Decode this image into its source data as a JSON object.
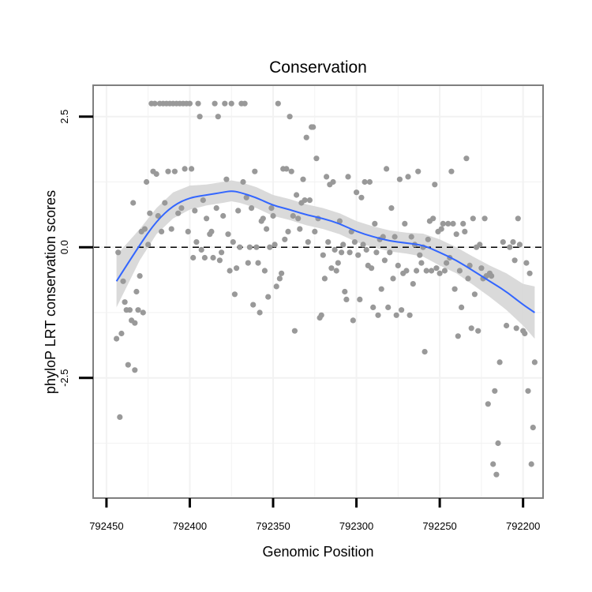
{
  "chart_data": {
    "type": "scatter",
    "title": "Conservation",
    "xlabel": "Genomic Position",
    "ylabel": "phyloP LRT conservation scores",
    "x_reversed": true,
    "xlim": [
      792458,
      792188
    ],
    "ylim": [
      -4.8,
      3.1
    ],
    "x_ticks": [
      792450,
      792400,
      792350,
      792300,
      792250,
      792200
    ],
    "x_tick_labels": [
      "792450",
      "792400",
      "792350",
      "792300",
      "792250",
      "792200"
    ],
    "y_ticks": [
      2.5,
      0.0,
      -2.5
    ],
    "y_tick_labels": [
      "2.5",
      "0.0",
      "-2.5"
    ],
    "reference_line": {
      "y": 0,
      "style": "dashed"
    },
    "grid": true,
    "colors": {
      "points": "#999999",
      "smooth_line": "#3366ff",
      "confidence_band": "#d6d6d6",
      "panel_border": "#7f7f7f",
      "grid": "#f2f2f2"
    },
    "points": [
      [
        792444,
        -1.75
      ],
      [
        792443,
        -0.1
      ],
      [
        792442,
        -3.25
      ],
      [
        792441,
        -1.65
      ],
      [
        792440,
        -0.65
      ],
      [
        792439,
        -1.05
      ],
      [
        792438,
        -1.2
      ],
      [
        792437,
        -2.25
      ],
      [
        792436,
        -1.2
      ],
      [
        792435,
        -1.4
      ],
      [
        792434,
        0.85
      ],
      [
        792433,
        -1.45
      ],
      [
        792433,
        -2.35
      ],
      [
        792432,
        -0.85
      ],
      [
        792431,
        -1.2
      ],
      [
        792430,
        -0.55
      ],
      [
        792429,
        0.3
      ],
      [
        792428,
        -1.25
      ],
      [
        792427,
        0.35
      ],
      [
        792426,
        1.25
      ],
      [
        792425,
        0.05
      ],
      [
        792424,
        0.65
      ],
      [
        792423,
        2.75
      ],
      [
        792422,
        1.45
      ],
      [
        792421,
        2.75
      ],
      [
        792420,
        1.4
      ],
      [
        792419,
        0.6
      ],
      [
        792418,
        2.75
      ],
      [
        792417,
        0.3
      ],
      [
        792416,
        2.75
      ],
      [
        792415,
        0.85
      ],
      [
        792414,
        2.75
      ],
      [
        792413,
        1.45
      ],
      [
        792412,
        2.75
      ],
      [
        792411,
        0.35
      ],
      [
        792410,
        2.75
      ],
      [
        792409,
        1.45
      ],
      [
        792408,
        2.75
      ],
      [
        792407,
        0.65
      ],
      [
        792406,
        2.75
      ],
      [
        792405,
        0.75
      ],
      [
        792404,
        2.75
      ],
      [
        792403,
        1.5
      ],
      [
        792402,
        2.75
      ],
      [
        792401,
        0.3
      ],
      [
        792400,
        2.75
      ],
      [
        792399,
        1.5
      ],
      [
        792398,
        -0.2
      ],
      [
        792397,
        0.7
      ],
      [
        792396,
        0.1
      ],
      [
        792395,
        2.75
      ],
      [
        792394,
        2.5
      ],
      [
        792393,
        -0.05
      ],
      [
        792392,
        0.9
      ],
      [
        792391,
        -0.2
      ],
      [
        792390,
        0.55
      ],
      [
        792388,
        0.25
      ],
      [
        792387,
        0.3
      ],
      [
        792386,
        -0.2
      ],
      [
        792385,
        2.75
      ],
      [
        792384,
        0.75
      ],
      [
        792383,
        2.5
      ],
      [
        792382,
        -0.25
      ],
      [
        792381,
        -0.1
      ],
      [
        792380,
        0.6
      ],
      [
        792379,
        2.75
      ],
      [
        792378,
        1.3
      ],
      [
        792377,
        0.25
      ],
      [
        792376,
        -0.45
      ],
      [
        792375,
        2.75
      ],
      [
        792374,
        0.1
      ],
      [
        792373,
        -0.9
      ],
      [
        792372,
        -0.4
      ],
      [
        792371,
        0.7
      ],
      [
        792370,
        0.0
      ],
      [
        792369,
        2.75
      ],
      [
        792368,
        1.25
      ],
      [
        792367,
        2.75
      ],
      [
        792366,
        0.95
      ],
      [
        792365,
        -0.3
      ],
      [
        792364,
        0.0
      ],
      [
        792363,
        0.75
      ],
      [
        792362,
        -1.1
      ],
      [
        792361,
        1.45
      ],
      [
        792360,
        0.0
      ],
      [
        792359,
        -0.3
      ],
      [
        792358,
        -1.25
      ],
      [
        792357,
        0.5
      ],
      [
        792356,
        0.55
      ],
      [
        792355,
        -0.45
      ],
      [
        792354,
        0.35
      ],
      [
        792353,
        -0.95
      ],
      [
        792352,
        0.0
      ],
      [
        792351,
        0.75
      ],
      [
        792350,
        0.6
      ],
      [
        792349,
        0.05
      ],
      [
        792348,
        -0.75
      ],
      [
        792347,
        2.75
      ],
      [
        792346,
        -0.6
      ],
      [
        792345,
        -0.5
      ],
      [
        792344,
        1.5
      ],
      [
        792343,
        0.15
      ],
      [
        792342,
        1.5
      ],
      [
        792341,
        0.3
      ],
      [
        792340,
        2.5
      ],
      [
        792339,
        1.45
      ],
      [
        792338,
        0.6
      ],
      [
        792337,
        -1.6
      ],
      [
        792336,
        1.0
      ],
      [
        792335,
        0.55
      ],
      [
        792334,
        0.35
      ],
      [
        792333,
        0.85
      ],
      [
        792332,
        1.3
      ],
      [
        792331,
        0.9
      ],
      [
        792330,
        2.1
      ],
      [
        792329,
        0.1
      ],
      [
        792328,
        0.9
      ],
      [
        792327,
        2.3
      ],
      [
        792326,
        2.3
      ],
      [
        792325,
        0.3
      ],
      [
        792324,
        1.7
      ],
      [
        792323,
        0.55
      ],
      [
        792322,
        -1.35
      ],
      [
        792321,
        -1.3
      ],
      [
        792320,
        -0.15
      ],
      [
        792319,
        -0.6
      ],
      [
        792318,
        1.35
      ],
      [
        792317,
        0.1
      ],
      [
        792316,
        1.2
      ],
      [
        792315,
        -0.4
      ],
      [
        792314,
        1.25
      ],
      [
        792313,
        -0.05
      ],
      [
        792312,
        -0.45
      ],
      [
        792311,
        -0.3
      ],
      [
        792310,
        0.5
      ],
      [
        792309,
        -0.1
      ],
      [
        792308,
        0.05
      ],
      [
        792307,
        -0.85
      ],
      [
        792306,
        -1.0
      ],
      [
        792305,
        1.35
      ],
      [
        792304,
        -0.1
      ],
      [
        792303,
        0.3
      ],
      [
        792302,
        -1.4
      ],
      [
        792301,
        0.1
      ],
      [
        792300,
        1.05
      ],
      [
        792299,
        -0.15
      ],
      [
        792298,
        -1.0
      ],
      [
        792297,
        0.95
      ],
      [
        792296,
        0.05
      ],
      [
        792295,
        1.25
      ],
      [
        792294,
        -0.05
      ],
      [
        792293,
        -0.35
      ],
      [
        792292,
        1.25
      ],
      [
        792291,
        -0.4
      ],
      [
        792290,
        -1.15
      ],
      [
        792289,
        0.45
      ],
      [
        792288,
        -0.1
      ],
      [
        792287,
        -1.3
      ],
      [
        792286,
        0.15
      ],
      [
        792285,
        -0.8
      ],
      [
        792284,
        0.2
      ],
      [
        792283,
        -0.25
      ],
      [
        792282,
        1.5
      ],
      [
        792281,
        -1.15
      ],
      [
        792280,
        -0.1
      ],
      [
        792279,
        0.75
      ],
      [
        792278,
        -0.6
      ],
      [
        792277,
        0.2
      ],
      [
        792276,
        -1.3
      ],
      [
        792275,
        -0.35
      ],
      [
        792274,
        1.3
      ],
      [
        792273,
        -1.2
      ],
      [
        792272,
        -0.5
      ],
      [
        792271,
        0.45
      ],
      [
        792270,
        -0.45
      ],
      [
        792269,
        1.35
      ],
      [
        792268,
        -1.3
      ],
      [
        792267,
        0.2
      ],
      [
        792266,
        -0.7
      ],
      [
        792265,
        0.05
      ],
      [
        792264,
        -0.45
      ],
      [
        792263,
        1.45
      ],
      [
        792262,
        -0.15
      ],
      [
        792261,
        -0.3
      ],
      [
        792260,
        0.0
      ],
      [
        792259,
        -2.0
      ],
      [
        792258,
        -0.45
      ],
      [
        792257,
        0.15
      ],
      [
        792256,
        0.5
      ],
      [
        792255,
        -0.45
      ],
      [
        792254,
        0.55
      ],
      [
        792253,
        1.2
      ],
      [
        792252,
        -0.4
      ],
      [
        792251,
        0.3
      ],
      [
        792250,
        -0.5
      ],
      [
        792249,
        0.35
      ],
      [
        792248,
        0.45
      ],
      [
        792247,
        -0.45
      ],
      [
        792246,
        -0.3
      ],
      [
        792245,
        0.45
      ],
      [
        792244,
        -0.2
      ],
      [
        792243,
        1.45
      ],
      [
        792242,
        0.45
      ],
      [
        792241,
        -0.8
      ],
      [
        792240,
        0.25
      ],
      [
        792239,
        -1.7
      ],
      [
        792238,
        -0.45
      ],
      [
        792237,
        -1.15
      ],
      [
        792236,
        0.45
      ],
      [
        792235,
        0.3
      ],
      [
        792234,
        1.7
      ],
      [
        792233,
        -0.6
      ],
      [
        792232,
        -0.35
      ],
      [
        792231,
        -1.55
      ],
      [
        792230,
        0.55
      ],
      [
        792229,
        -0.9
      ],
      [
        792228,
        0.0
      ],
      [
        792227,
        -1.6
      ],
      [
        792226,
        0.05
      ],
      [
        792225,
        -0.4
      ],
      [
        792224,
        -0.6
      ],
      [
        792223,
        0.55
      ],
      [
        792222,
        -0.55
      ],
      [
        792221,
        -3.0
      ],
      [
        792220,
        -0.5
      ],
      [
        792219,
        -0.55
      ],
      [
        792218,
        -4.15
      ],
      [
        792217,
        -2.75
      ],
      [
        792216,
        -4.35
      ],
      [
        792215,
        -3.75
      ],
      [
        792214,
        -2.2
      ],
      [
        792205,
        -0.25
      ],
      [
        792203,
        0.55
      ],
      [
        792198,
        -0.3
      ],
      [
        792196,
        -0.5
      ],
      [
        792200,
        -1.6
      ],
      [
        792206,
        0.1
      ],
      [
        792210,
        -1.5
      ],
      [
        792208,
        0.0
      ],
      [
        792202,
        0.05
      ],
      [
        792204,
        -1.55
      ],
      [
        792212,
        0.1
      ],
      [
        792199,
        -1.65
      ],
      [
        792197,
        -2.75
      ],
      [
        792195,
        -4.15
      ],
      [
        792194,
        -3.45
      ],
      [
        792193,
        -2.2
      ]
    ],
    "smooth": {
      "x": [
        792444,
        792430,
        792420,
        792410,
        792400,
        792390,
        792380,
        792375,
        792370,
        792360,
        792350,
        792340,
        792330,
        792320,
        792310,
        792300,
        792290,
        792280,
        792270,
        792260,
        792250,
        792240,
        792230,
        792220,
        792210,
        792200,
        792193
      ],
      "y": [
        -0.65,
        0.05,
        0.5,
        0.8,
        0.95,
        1.0,
        1.05,
        1.08,
        1.05,
        0.95,
        0.8,
        0.72,
        0.62,
        0.55,
        0.45,
        0.3,
        0.2,
        0.12,
        0.08,
        0.04,
        -0.1,
        -0.25,
        -0.45,
        -0.65,
        -0.85,
        -1.1,
        -1.25
      ],
      "lower": [
        -1.15,
        -0.25,
        0.25,
        0.55,
        0.72,
        0.8,
        0.85,
        0.88,
        0.85,
        0.75,
        0.6,
        0.52,
        0.42,
        0.35,
        0.25,
        0.1,
        0.0,
        -0.08,
        -0.12,
        -0.18,
        -0.35,
        -0.5,
        -0.72,
        -0.95,
        -1.2,
        -1.5,
        -1.75
      ],
      "upper": [
        -0.15,
        0.35,
        0.75,
        1.05,
        1.18,
        1.2,
        1.25,
        1.28,
        1.25,
        1.15,
        1.0,
        0.92,
        0.82,
        0.75,
        0.65,
        0.5,
        0.4,
        0.32,
        0.28,
        0.26,
        0.15,
        0.0,
        -0.18,
        -0.35,
        -0.5,
        -0.7,
        -0.75
      ]
    }
  }
}
